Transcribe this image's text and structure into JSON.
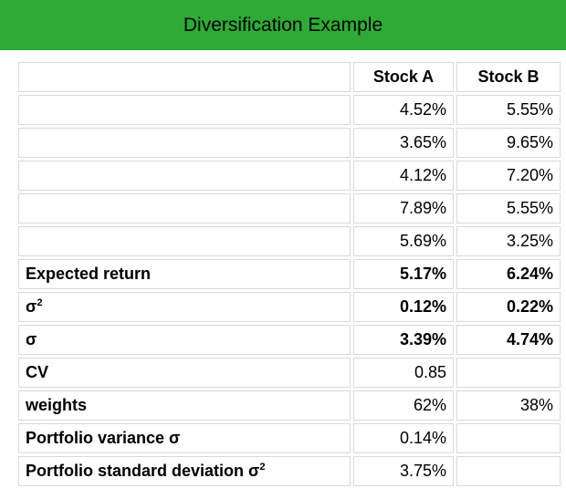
{
  "title": "Diversification Example",
  "colors": {
    "banner_green": "#2dab35",
    "cell_border": "#d9d9d9",
    "text": "#000000",
    "divider_black": "#000000"
  },
  "table": {
    "header": {
      "label": "",
      "a": "Stock A",
      "b": "Stock B"
    },
    "rows": [
      {
        "label": "",
        "a": "4.52%",
        "b": "5.55%"
      },
      {
        "label": "",
        "a": "3.65%",
        "b": "9.65%"
      },
      {
        "label": "",
        "a": "4.12%",
        "b": "7.20%"
      },
      {
        "label": "",
        "a": "7.89%",
        "b": "5.55%"
      },
      {
        "label": "",
        "a": "5.69%",
        "b": "3.25%"
      },
      {
        "label": "Expected return",
        "a": "5.17%",
        "b": "6.24%"
      },
      {
        "label": "σ",
        "label_sup": "2",
        "a": "0.12%",
        "b": "0.22%"
      },
      {
        "label": "σ",
        "a": "3.39%",
        "b": "4.74%"
      },
      {
        "label": "CV",
        "a": "0.85",
        "b": ""
      },
      {
        "label": "weights",
        "a": "62%",
        "b": "38%"
      },
      {
        "label": "Portfolio variance σ",
        "a": "0.14%",
        "b": ""
      },
      {
        "label": "Portfolio standard deviation σ",
        "label_sup": "2",
        "a": "3.75%",
        "b": ""
      }
    ]
  }
}
